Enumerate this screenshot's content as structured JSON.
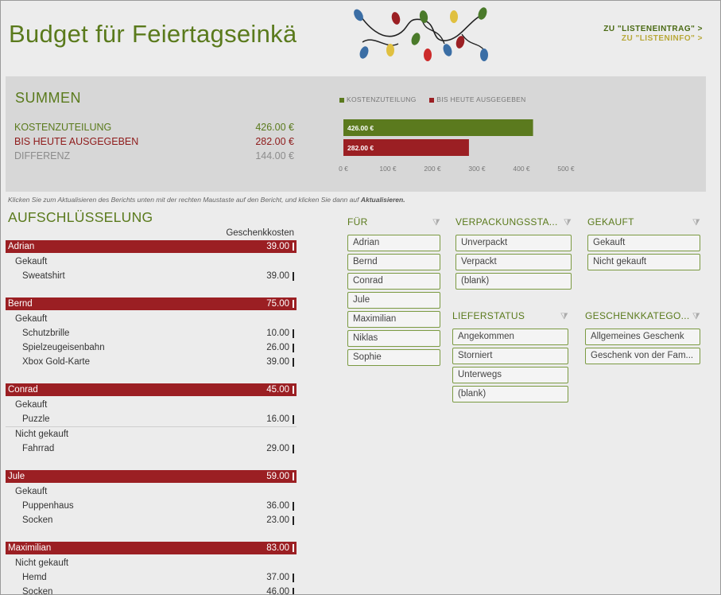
{
  "page": {
    "title": "Budget für Feiertagseinkäufe"
  },
  "nav": {
    "link1": "ZU \"LISTENEINTRAG\" >",
    "link2": "ZU \"LISTENINFO\" >"
  },
  "summary": {
    "title": "SUMMEN",
    "rows": [
      {
        "label": "KOSTENZUTEILUNG",
        "value": "426.00 €"
      },
      {
        "label": "BIS HEUTE AUSGEGEBEN",
        "value": "282.00 €"
      },
      {
        "label": "DIFFERENZ",
        "value": "144.00 €"
      }
    ]
  },
  "chart_data": {
    "type": "bar",
    "orientation": "horizontal",
    "series": [
      {
        "name": "KOSTENZUTEILUNG",
        "value": 426,
        "label": "426.00 €",
        "color": "#5b7a1e"
      },
      {
        "name": "BIS HEUTE AUSGEGEBEN",
        "value": 282,
        "label": "282.00 €",
        "color": "#9b1f23"
      }
    ],
    "xlim": [
      0,
      500
    ],
    "ticks": [
      "0 €",
      "100 €",
      "200 €",
      "300 €",
      "400 €",
      "500 €"
    ],
    "legend_position": "top-left",
    "grid": false
  },
  "hint": {
    "text": "Klicken Sie zum Aktualisieren des Berichts unten mit der rechten Maustaste auf den Bericht, und klicken Sie dann auf",
    "action": "Aktualisieren."
  },
  "breakdown": {
    "title": "AUFSCHLÜSSELUNG",
    "column": "Geschenkkosten",
    "rows": [
      {
        "type": "group",
        "name": "Adrian",
        "amount": "39.00"
      },
      {
        "type": "status",
        "name": "Gekauft"
      },
      {
        "type": "item",
        "name": "Sweatshirt",
        "amount": "39.00"
      },
      {
        "type": "gap"
      },
      {
        "type": "group",
        "name": "Bernd",
        "amount": "75.00"
      },
      {
        "type": "status",
        "name": "Gekauft"
      },
      {
        "type": "item",
        "name": "Schutzbrille",
        "amount": "10.00"
      },
      {
        "type": "item",
        "name": "Spielzeugeisenbahn",
        "amount": "26.00"
      },
      {
        "type": "item",
        "name": "Xbox Gold-Karte",
        "amount": "39.00"
      },
      {
        "type": "gap"
      },
      {
        "type": "group",
        "name": "Conrad",
        "amount": "45.00"
      },
      {
        "type": "status",
        "name": "Gekauft"
      },
      {
        "type": "item",
        "name": "Puzzle",
        "amount": "16.00"
      },
      {
        "type": "status",
        "name": "Nicht gekauft",
        "line": true
      },
      {
        "type": "item",
        "name": "Fahrrad",
        "amount": "29.00"
      },
      {
        "type": "gap"
      },
      {
        "type": "group",
        "name": "Jule",
        "amount": "59.00"
      },
      {
        "type": "status",
        "name": "Gekauft"
      },
      {
        "type": "item",
        "name": "Puppenhaus",
        "amount": "36.00"
      },
      {
        "type": "item",
        "name": "Socken",
        "amount": "23.00"
      },
      {
        "type": "gap"
      },
      {
        "type": "group",
        "name": "Maximilian",
        "amount": "83.00"
      },
      {
        "type": "status",
        "name": "Nicht gekauft"
      },
      {
        "type": "item",
        "name": "Hemd",
        "amount": "37.00"
      },
      {
        "type": "item",
        "name": "Socken",
        "amount": "46.00"
      }
    ]
  },
  "slicers": {
    "fuer": {
      "title": "FÜR",
      "items": [
        "Adrian",
        "Bernd",
        "Conrad",
        "Jule",
        "Maximilian",
        "Niklas",
        "Sophie"
      ]
    },
    "verpackung": {
      "title": "VERPACKUNGSSTA...",
      "items": [
        "Unverpackt",
        "Verpackt",
        "(blank)"
      ]
    },
    "gekauft": {
      "title": "GEKAUFT",
      "items": [
        "Gekauft",
        "Nicht gekauft"
      ]
    },
    "lieferstatus": {
      "title": "LIEFERSTATUS",
      "items": [
        "Angekommen",
        "Storniert",
        "Unterwegs",
        "(blank)"
      ]
    },
    "kategorie": {
      "title": "GESCHENKKATEGO...",
      "items": [
        "Allgemeines Geschenk",
        "Geschenk von der Fam..."
      ]
    }
  },
  "icons": {
    "filter": "clear-filter-icon",
    "decoration": "christmas-lights-icon"
  }
}
